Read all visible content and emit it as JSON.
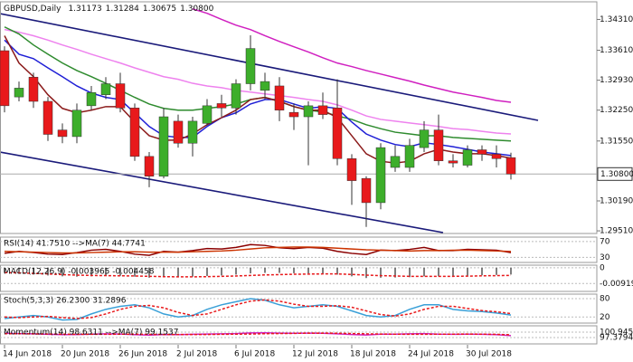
{
  "chart_data": [
    {
      "type": "candlestick",
      "title": "GBPUSD,Daily",
      "ohlc_labels": [
        "1.31173",
        "1.31284",
        "1.30675",
        "1.30800"
      ],
      "categories": [
        "14 Jun 2018",
        null,
        null,
        null,
        "20 Jun 2018",
        null,
        null,
        null,
        "26 Jun 2018",
        null,
        null,
        null,
        "2 Jul 2018",
        null,
        null,
        null,
        "6 Jul 2018",
        null,
        null,
        null,
        "12 Jul 2018",
        null,
        null,
        null,
        "18 Jul 2018",
        null,
        null,
        null,
        "24 Jul 2018",
        null,
        null,
        null,
        "30 Jul 2018",
        null,
        null,
        null
      ],
      "open": [
        1.336,
        1.3255,
        1.33,
        1.3245,
        1.318,
        1.3165,
        1.3235,
        1.326,
        1.3285,
        1.323,
        1.312,
        1.3075,
        1.32,
        1.315,
        1.3195,
        1.324,
        1.323,
        1.3285,
        1.327,
        1.328,
        1.322,
        1.321,
        1.3235,
        1.323,
        1.3115,
        1.307,
        1.3015,
        1.3095,
        1.3095,
        1.314,
        1.318,
        1.311,
        1.31,
        1.3135,
        1.3125,
        1.31173
      ],
      "high": [
        1.337,
        1.329,
        1.331,
        1.3255,
        1.3195,
        1.324,
        1.328,
        1.33,
        1.331,
        1.324,
        1.313,
        1.323,
        1.3215,
        1.321,
        1.325,
        1.326,
        1.3295,
        1.3395,
        1.331,
        1.33,
        1.324,
        1.3245,
        1.3265,
        1.3295,
        1.3125,
        1.3075,
        1.315,
        1.3145,
        1.316,
        1.32,
        1.3215,
        1.3125,
        1.3145,
        1.3145,
        1.3145,
        1.31284
      ],
      "low": [
        1.322,
        1.3245,
        1.323,
        1.3155,
        1.315,
        1.315,
        1.3225,
        1.325,
        1.322,
        1.311,
        1.305,
        1.307,
        1.314,
        1.312,
        1.319,
        1.321,
        1.3215,
        1.327,
        1.325,
        1.32,
        1.318,
        1.31,
        1.3205,
        1.31,
        1.301,
        1.296,
        1.3,
        1.3085,
        1.3085,
        1.313,
        1.31,
        1.3095,
        1.3095,
        1.311,
        1.3095,
        1.30675
      ],
      "close": [
        1.3235,
        1.3275,
        1.3245,
        1.317,
        1.3165,
        1.3225,
        1.3265,
        1.3285,
        1.323,
        1.312,
        1.3075,
        1.321,
        1.315,
        1.32,
        1.3235,
        1.323,
        1.3285,
        1.3365,
        1.329,
        1.3225,
        1.321,
        1.3235,
        1.3215,
        1.3115,
        1.3065,
        1.3015,
        1.314,
        1.312,
        1.3145,
        1.318,
        1.311,
        1.3105,
        1.3135,
        1.3125,
        1.3115,
        1.308
      ],
      "up_color": "#3dae2b",
      "down_color": "#e8191b",
      "series": [
        {
          "color": "#ee82ee",
          "values": [
            1.3408,
            1.3402,
            1.3394,
            1.3384,
            1.3373,
            1.3363,
            1.3352,
            1.3342,
            1.3332,
            1.3321,
            1.3311,
            1.3301,
            1.3295,
            1.3286,
            1.328,
            1.3276,
            1.327,
            1.3266,
            1.3262,
            1.3258,
            1.3254,
            1.3249,
            1.3245,
            1.3237,
            1.3225,
            1.3212,
            1.3204,
            1.32,
            1.3196,
            1.3192,
            1.3188,
            1.3183,
            1.3181,
            1.3177,
            1.3173,
            1.3171
          ]
        },
        {
          "color": "#d020c0",
          "values": [
            null,
            null,
            null,
            null,
            null,
            null,
            null,
            null,
            null,
            null,
            null,
            null,
            null,
            1.3455,
            1.3445,
            1.3431,
            1.3418,
            1.3408,
            1.3394,
            1.3381,
            1.3369,
            1.3357,
            1.3344,
            1.3332,
            1.3324,
            1.3315,
            1.3307,
            1.3299,
            1.3291,
            1.3282,
            1.3274,
            1.3266,
            1.326,
            1.3254,
            1.3247,
            1.3243
          ]
        },
        {
          "color": "#2e8b2e",
          "values": [
            1.3414,
            1.3398,
            1.3373,
            1.3352,
            1.3332,
            1.3315,
            1.3301,
            1.3286,
            1.327,
            1.3254,
            1.3239,
            1.3229,
            1.3225,
            1.3225,
            1.3229,
            1.3233,
            1.3239,
            1.3249,
            1.3254,
            1.3245,
            1.3233,
            1.3225,
            1.3221,
            1.3212,
            1.3204,
            1.3192,
            1.3183,
            1.3175,
            1.3171,
            1.3167,
            1.3167,
            1.3163,
            1.3161,
            1.3159,
            1.3157,
            1.3155
          ]
        },
        {
          "color": "#1f1fd6",
          "values": [
            1.3384,
            1.3352,
            1.3342,
            1.3321,
            1.3301,
            1.328,
            1.3264,
            1.3254,
            1.3249,
            1.3219,
            1.3188,
            1.3167,
            1.3163,
            1.3163,
            1.3188,
            1.3208,
            1.3219,
            1.3239,
            1.3249,
            1.3249,
            1.3239,
            1.3229,
            1.3233,
            1.3229,
            1.3198,
            1.3171,
            1.3157,
            1.3147,
            1.3142,
            1.3151,
            1.3147,
            1.3142,
            1.3136,
            1.313,
            1.3126,
            1.3122
          ]
        },
        {
          "color": "#8b1a1a",
          "values": [
            1.3394,
            1.3332,
            1.3301,
            1.326,
            1.3229,
            1.3219,
            1.3225,
            1.3233,
            1.3233,
            1.3198,
            1.3167,
            1.3157,
            1.3157,
            1.3171,
            1.3192,
            1.3208,
            1.3225,
            1.3249,
            1.3254,
            1.3245,
            1.3233,
            1.3225,
            1.3225,
            1.3208,
            1.3167,
            1.3126,
            1.3109,
            1.3105,
            1.3109,
            1.3126,
            1.3136,
            1.313,
            1.3126,
            1.3126,
            1.3122,
            1.3116
          ]
        }
      ],
      "ylim": [
        1.2945,
        1.3471
      ],
      "yticks": [
        {
          "value": 1.3431,
          "label": "1.34310"
        },
        {
          "value": 1.3361,
          "label": "1.33610"
        },
        {
          "value": 1.3293,
          "label": "1.32930"
        },
        {
          "value": 1.3225,
          "label": "1.32250"
        },
        {
          "value": 1.3155,
          "label": "1.31550"
        },
        {
          "value": 1.3019,
          "label": "1.30190"
        },
        {
          "value": 1.2951,
          "label": "1.29510"
        }
      ],
      "price_tag": {
        "value": 1.308,
        "label": "1.30800"
      },
      "grid": false
    },
    {
      "type": "line",
      "title": "RSI(14) 41.7510 -->MA(7) 44.7741",
      "ylim": [
        17,
        81
      ],
      "yticks": [
        70,
        30
      ],
      "grid": true,
      "series": [
        {
          "color": "#8b0000",
          "dash": false,
          "values": [
            40,
            45,
            42,
            38,
            37,
            42,
            48,
            50,
            45,
            38,
            35,
            45,
            43,
            47,
            52,
            51,
            55,
            62,
            60,
            54,
            52,
            55,
            53,
            45,
            40,
            37,
            48,
            47,
            50,
            55,
            47,
            47,
            50,
            49,
            48,
            41.751
          ]
        },
        {
          "color": "#cc3300",
          "dash": false,
          "values": [
            45,
            44,
            43,
            42,
            41,
            41,
            42,
            43,
            44,
            44,
            43,
            43,
            43,
            44,
            45,
            46,
            48,
            51,
            54,
            55,
            56,
            56,
            55,
            53,
            51,
            49,
            48,
            47,
            46,
            47,
            47,
            48,
            48,
            47,
            46,
            44.7741
          ]
        }
      ]
    },
    {
      "type": "line",
      "title": "MACD(12,26,9) -0.003965 -0.004458",
      "ylim": [
        -0.0138,
        0.0015
      ],
      "yticks": [
        0,
        -0.009191
      ],
      "grid": true,
      "color": "#555555",
      "values": [
        -0.003,
        -0.0035,
        -0.004,
        -0.0045,
        -0.005,
        -0.0052,
        -0.005,
        -0.0048,
        -0.0047,
        -0.0052,
        -0.0058,
        -0.0055,
        -0.0055,
        -0.0052,
        -0.0048,
        -0.0045,
        -0.004,
        -0.0033,
        -0.003,
        -0.003,
        -0.0032,
        -0.0033,
        -0.0034,
        -0.004,
        -0.005,
        -0.006,
        -0.0058,
        -0.0057,
        -0.0055,
        -0.005,
        -0.005,
        -0.0049,
        -0.0046,
        -0.0044,
        -0.0042,
        -0.003965
      ],
      "series": [
        {
          "color": "#e8191b",
          "dash": true,
          "values": [
            -0.0028,
            -0.003,
            -0.0033,
            -0.0036,
            -0.004,
            -0.0043,
            -0.0045,
            -0.0046,
            -0.0047,
            -0.0048,
            -0.005,
            -0.0052,
            -0.0053,
            -0.0053,
            -0.0052,
            -0.005,
            -0.0048,
            -0.0045,
            -0.0042,
            -0.004,
            -0.0038,
            -0.0037,
            -0.0036,
            -0.0036,
            -0.0039,
            -0.0043,
            -0.0046,
            -0.0048,
            -0.005,
            -0.005,
            -0.005,
            -0.005,
            -0.0049,
            -0.0047,
            -0.0046,
            -0.004458
          ]
        }
      ]
    },
    {
      "type": "line",
      "title": "Stoch(5,3,3) 26.2300 31.2896",
      "ylim": [
        0,
        95
      ],
      "yticks": [
        80,
        20
      ],
      "grid": true,
      "series": [
        {
          "color": "#3aa0d8",
          "dash": false,
          "values": [
            15,
            20,
            25,
            20,
            10,
            12,
            30,
            45,
            55,
            60,
            50,
            30,
            20,
            25,
            45,
            60,
            70,
            80,
            75,
            60,
            50,
            55,
            60,
            55,
            40,
            25,
            20,
            25,
            45,
            60,
            60,
            45,
            40,
            38,
            33,
            26.23
          ]
        },
        {
          "color": "#e8191b",
          "dash": true,
          "values": [
            20,
            18,
            20,
            22,
            18,
            15,
            18,
            30,
            45,
            55,
            58,
            50,
            35,
            25,
            30,
            45,
            60,
            72,
            76,
            72,
            62,
            55,
            55,
            57,
            52,
            40,
            28,
            23,
            30,
            45,
            55,
            55,
            48,
            41,
            37,
            31.2896
          ]
        }
      ]
    },
    {
      "type": "line",
      "title": "Momentum(14) 98.6311 -->MA(7) 99.1537",
      "ylim": [
        93.2,
        105.1
      ],
      "yticks": [
        100.945,
        97.3794
      ],
      "grid": true,
      "series": [
        {
          "color": "#d020c0",
          "dash": false,
          "values": [
            100.2,
            100,
            99.8,
            99.5,
            99.3,
            99.4,
            99.6,
            99.8,
            99.7,
            99.3,
            99,
            99.4,
            99.3,
            99.5,
            99.7,
            99.8,
            100,
            100.4,
            100.5,
            100.3,
            100.2,
            100.3,
            100.2,
            99.8,
            99.4,
            99.1,
            99.6,
            99.6,
            99.8,
            100,
            99.6,
            99.5,
            99.6,
            99.5,
            99.3,
            98.6311
          ]
        },
        {
          "color": "#e8191b",
          "dash": true,
          "values": [
            99.9,
            99.9,
            99.8,
            99.7,
            99.6,
            99.5,
            99.5,
            99.5,
            99.6,
            99.6,
            99.5,
            99.4,
            99.4,
            99.4,
            99.4,
            99.5,
            99.6,
            99.7,
            99.9,
            100,
            100.1,
            100.3,
            100.3,
            100.2,
            100,
            99.8,
            99.7,
            99.6,
            99.5,
            99.5,
            99.6,
            99.6,
            99.7,
            99.6,
            99.5,
            99.1537
          ]
        }
      ]
    }
  ]
}
